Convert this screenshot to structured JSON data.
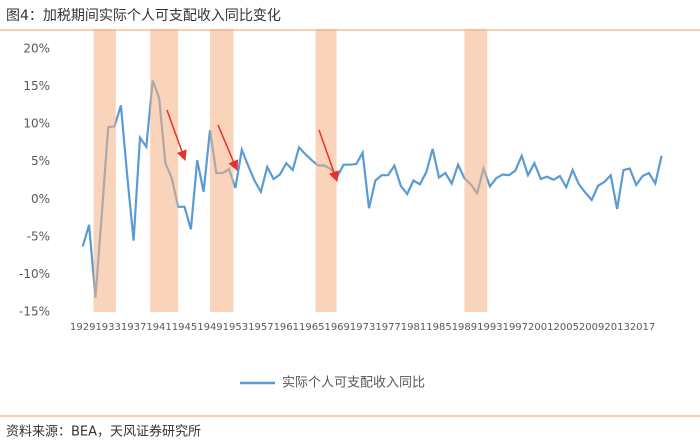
{
  "chart_data": {
    "type": "line",
    "title": "图4：加税期间实际个人可支配收入同比变化",
    "source": "资料来源：BEA，天风证券研究所",
    "x": [
      1929,
      1930,
      1931,
      1932,
      1933,
      1934,
      1935,
      1936,
      1937,
      1938,
      1939,
      1940,
      1941,
      1942,
      1943,
      1944,
      1945,
      1946,
      1947,
      1948,
      1949,
      1950,
      1951,
      1952,
      1953,
      1954,
      1955,
      1956,
      1957,
      1958,
      1959,
      1960,
      1961,
      1962,
      1963,
      1964,
      1965,
      1966,
      1967,
      1968,
      1969,
      1970,
      1971,
      1972,
      1973,
      1974,
      1975,
      1976,
      1977,
      1978,
      1979,
      1980,
      1981,
      1982,
      1983,
      1984,
      1985,
      1986,
      1987,
      1988,
      1989,
      1990,
      1991,
      1992,
      1993,
      1994,
      1995,
      1996,
      1997,
      1998,
      1999,
      2000,
      2001,
      2002,
      2003,
      2004,
      2005,
      2006,
      2007,
      2008,
      2009,
      2010,
      2011,
      2012,
      2013,
      2014,
      2015,
      2016,
      2017,
      2018,
      2019,
      2020
    ],
    "series": [
      {
        "name": "实际个人可支配收入同比",
        "color": "#5b9bd5",
        "values": [
          -6.3,
          -3.4,
          -13.1,
          -2.0,
          9.6,
          9.7,
          12.5,
          3.0,
          -5.5,
          8.2,
          7.0,
          15.8,
          13.5,
          4.8,
          2.8,
          -1.0,
          -1.0,
          -4.0,
          5.2,
          1.0,
          9.2,
          3.5,
          3.5,
          4.0,
          1.5,
          6.6,
          4.5,
          2.5,
          1.0,
          4.3,
          2.7,
          3.3,
          4.8,
          3.9,
          6.9,
          6.0,
          5.2,
          4.5,
          4.5,
          4.0,
          3.0,
          4.6,
          4.6,
          4.7,
          6.2,
          -1.2,
          2.5,
          3.2,
          3.2,
          4.5,
          1.8,
          0.7,
          2.5,
          2.0,
          3.6,
          6.7,
          2.9,
          3.5,
          2.1,
          4.6,
          2.8,
          2.0,
          0.8,
          4.1,
          1.7,
          2.8,
          3.3,
          3.2,
          3.8,
          5.8,
          3.2,
          4.8,
          2.7,
          3.0,
          2.6,
          3.1,
          1.6,
          3.9,
          2.0,
          0.9,
          -0.1,
          1.8,
          2.3,
          3.2,
          -1.3,
          3.9,
          4.1,
          1.9,
          3.1,
          3.5,
          2.1,
          5.8
        ]
      }
    ],
    "shaded_periods": [
      [
        1930.7,
        1934.2
      ],
      [
        1939.6,
        1944.0
      ],
      [
        1949.0,
        1952.7
      ],
      [
        1965.6,
        1968.9
      ],
      [
        1989.0,
        1992.6
      ]
    ],
    "shade_color": "#f4b183",
    "xlim": [
      1927,
      2021
    ],
    "ylim": [
      -15,
      20
    ],
    "xticks": [
      1929,
      1933,
      1937,
      1941,
      1945,
      1949,
      1953,
      1957,
      1961,
      1965,
      1969,
      1973,
      1977,
      1981,
      1985,
      1989,
      1993,
      1997,
      2001,
      2005,
      2009,
      2013,
      2017
    ],
    "yticks": [
      {
        "value": -15,
        "label": "-15%"
      },
      {
        "value": -10,
        "label": "-10%"
      },
      {
        "value": -5,
        "label": "-5%"
      },
      {
        "value": 0,
        "label": "0%"
      },
      {
        "value": 5,
        "label": "5%"
      },
      {
        "value": 10,
        "label": "10%"
      },
      {
        "value": 15,
        "label": "15%"
      },
      {
        "value": 20,
        "label": "20%"
      }
    ],
    "grid": false
  }
}
